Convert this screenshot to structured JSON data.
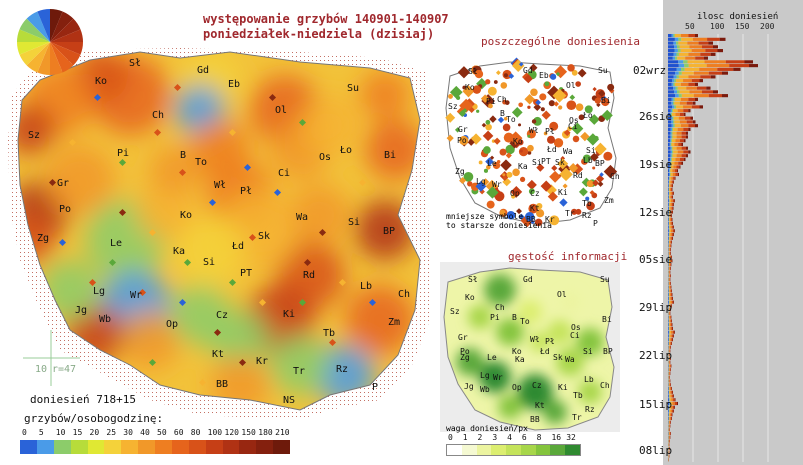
{
  "header": {
    "title_line1": "występowanie grzybów 140901-140907",
    "title_line2": "poniedziałek-niedziela (dzisiaj)"
  },
  "main_map": {
    "regions": [
      "Sł",
      "Gd",
      "Eb",
      "Ol",
      "Su",
      "Ko",
      "Ch",
      "Sz",
      "Pi",
      "B",
      "To",
      "Os",
      "Ło",
      "Bi",
      "Gr",
      "Wł",
      "Pł",
      "Ci",
      "Po",
      "Ko",
      "Wa",
      "Si",
      "BP",
      "Zg",
      "Le",
      "Ka",
      "Sk",
      "Łd",
      "Si",
      "PT",
      "Rd",
      "Lb",
      "Lg",
      "Wr",
      "Op",
      "Cz",
      "Ki",
      "Ch",
      "Jg",
      "Wb",
      "Kt",
      "Kr",
      "Tb",
      "Zm",
      "BB",
      "Tr",
      "Rz",
      "NS",
      "P"
    ],
    "scale_box": {
      "ten": "10",
      "radius": "r=47"
    },
    "count_label": "doniesień 718+15",
    "legend_title": "grzybów/osobogodzinę:",
    "legend_values": [
      "0",
      "5",
      "10",
      "15",
      "20",
      "25",
      "30",
      "40",
      "50",
      "60",
      "80",
      "100",
      "120",
      "150",
      "180",
      "210"
    ],
    "legend_colors": [
      "#2a63d8",
      "#4a9be8",
      "#8ccc6a",
      "#b7dc3a",
      "#e0e833",
      "#f4d23a",
      "#f6b331",
      "#f19829",
      "#ee7e21",
      "#e6641c",
      "#d85219",
      "#c63f16",
      "#b03214",
      "#982711",
      "#84200e",
      "#6e1a0b"
    ]
  },
  "top_panel": {
    "title": "poszczególne doniesienia",
    "regions": [
      "Sł",
      "Gd",
      "Eb",
      "Ol",
      "Su",
      "Ko",
      "Ch",
      "Sz",
      "Pi",
      "B",
      "To",
      "Os",
      "Ło",
      "Bi",
      "Gr",
      "Wł",
      "Pł",
      "Ci",
      "Po",
      "Ko",
      "Wa",
      "Si",
      "BP",
      "Zg",
      "Le",
      "Ka",
      "Sk",
      "Łd",
      "Si",
      "PT",
      "Rd",
      "Lb",
      "Lg",
      "Wr",
      "Op",
      "Cz",
      "Ki",
      "Ch",
      "Kt",
      "Kr",
      "Tb",
      "Zm",
      "BB",
      "Tr",
      "Rz",
      "P"
    ],
    "note_line1": "mniejsze symbole",
    "note_line2": "to starsze doniesienia"
  },
  "bottom_panel": {
    "title": "gęstość informacji",
    "legend_title": "waga doniesień/px",
    "legend_values": [
      "0",
      "1",
      "2",
      "3",
      "4",
      "6",
      "8",
      "16",
      "32"
    ],
    "legend_colors": [
      "#ffffff",
      "#f5f9d2",
      "#ecf4a0",
      "#dcee70",
      "#c4e35a",
      "#a7d64a",
      "#84c43c",
      "#5aa83a",
      "#2f8a30"
    ]
  },
  "sidebar": {
    "header": "ilosc doniesień",
    "axis_ticks": [
      "50",
      "100",
      "150",
      "200"
    ],
    "dates": [
      "02wrz",
      "26sie",
      "19sie",
      "12sie",
      "05sie",
      "29lip",
      "22lip",
      "15lip",
      "08lip"
    ]
  },
  "chart_data": {
    "type": "bar",
    "title": "ilosc doniesień",
    "orientation": "horizontal",
    "date_labels": [
      "02wrz",
      "26sie",
      "19sie",
      "12sie",
      "05sie",
      "29lip",
      "22lip",
      "15lip",
      "08lip"
    ],
    "xlim": [
      0,
      250
    ],
    "xticks": [
      50,
      100,
      150,
      200
    ],
    "values_newest_first": [
      60,
      115,
      90,
      100,
      110,
      95,
      80,
      170,
      180,
      145,
      120,
      95,
      70,
      60,
      85,
      100,
      120,
      60,
      55,
      70,
      45,
      35,
      50,
      55,
      60,
      45,
      40,
      40,
      35,
      30,
      40,
      45,
      40,
      35,
      30,
      25,
      20,
      22,
      15,
      12,
      10,
      9,
      12,
      10,
      14,
      12,
      11,
      10,
      8,
      9,
      10,
      12,
      14,
      12,
      10,
      8,
      7,
      6,
      6,
      8,
      9,
      7,
      6,
      5,
      6,
      5,
      6,
      7,
      8,
      9,
      10,
      12,
      8,
      6,
      5,
      7,
      8,
      9,
      10,
      14,
      12,
      10,
      8,
      6,
      5,
      4,
      6,
      5,
      7,
      6,
      5,
      4,
      5,
      6,
      8,
      10,
      12,
      15,
      20,
      14,
      12,
      9,
      8,
      6,
      5,
      4,
      6,
      5,
      4,
      3,
      4,
      3,
      3,
      2
    ]
  }
}
